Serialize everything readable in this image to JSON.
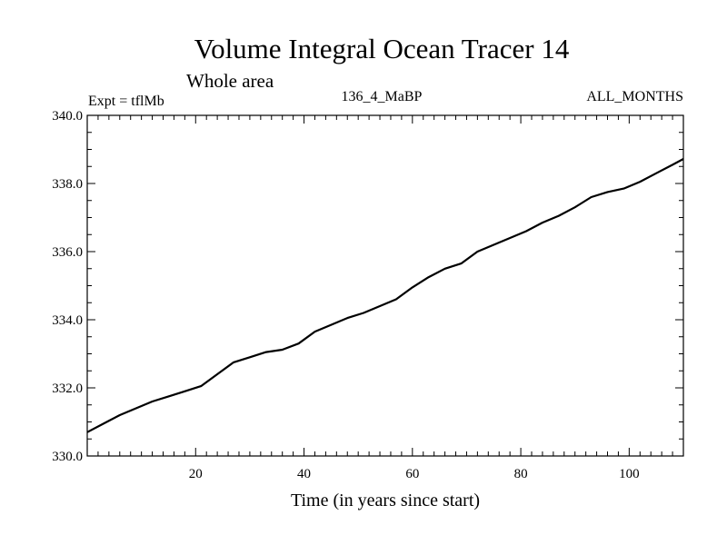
{
  "chart_data": {
    "type": "line",
    "title": "Volume Integral Ocean Tracer 14",
    "subtitle": "Whole area",
    "annotations": {
      "left": "Expt = tflMb",
      "center": "136_4_MaBP",
      "right": "ALL_MONTHS"
    },
    "xlabel": "Time (in years since start)",
    "ylabel": "",
    "xlim": [
      0,
      110
    ],
    "ylim": [
      330.0,
      340.0
    ],
    "xticks": [
      20,
      40,
      60,
      80,
      100
    ],
    "xtick_labels": [
      "20",
      "40",
      "60",
      "80",
      "100"
    ],
    "yticks": [
      330,
      332,
      334,
      336,
      338,
      340
    ],
    "ytick_labels": [
      "330.0",
      "332.0",
      "334.0",
      "336.0",
      "338.0",
      "340.0"
    ],
    "grid": false,
    "series": [
      {
        "color": "#000000",
        "x": [
          0,
          3,
          6,
          9,
          12,
          15,
          18,
          21,
          24,
          27,
          30,
          33,
          36,
          39,
          42,
          45,
          48,
          51,
          54,
          57,
          60,
          63,
          66,
          69,
          72,
          75,
          78,
          81,
          84,
          87,
          90,
          93,
          96,
          99,
          102,
          105,
          108,
          110
        ],
        "y": [
          330.7,
          330.95,
          331.2,
          331.4,
          331.6,
          331.75,
          331.9,
          332.05,
          332.4,
          332.75,
          332.9,
          333.05,
          333.12,
          333.3,
          333.65,
          333.85,
          334.05,
          334.2,
          334.4,
          334.6,
          334.95,
          335.25,
          335.5,
          335.65,
          336.0,
          336.2,
          336.4,
          336.6,
          336.85,
          337.05,
          337.3,
          337.6,
          337.75,
          337.85,
          338.05,
          338.3,
          338.55,
          338.72
        ]
      }
    ]
  }
}
